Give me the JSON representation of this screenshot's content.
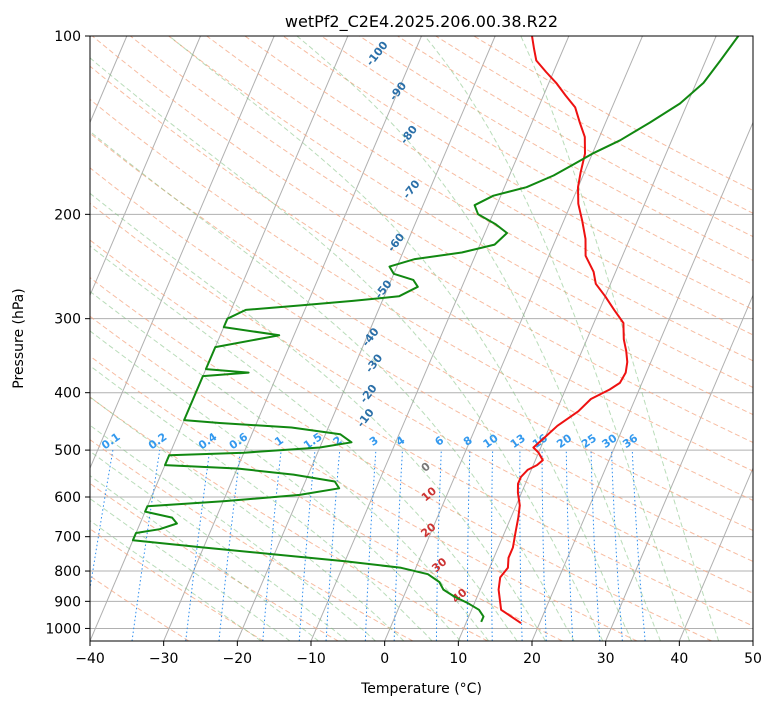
{
  "chart_data": {
    "type": "line",
    "title": "wetPf2_C2E4.2025.206.00.38.R22",
    "xlabel": "Temperature (°C)",
    "ylabel": "Pressure (hPa)",
    "xlim": [
      -40,
      50
    ],
    "ylim": [
      1050,
      100
    ],
    "y_scale": "log",
    "grid": true,
    "x_ticks": [
      -40,
      -30,
      -20,
      -10,
      0,
      10,
      20,
      30,
      40,
      50
    ],
    "y_ticks": [
      100,
      200,
      300,
      400,
      500,
      600,
      700,
      800,
      900,
      1000
    ],
    "series": [
      {
        "color": "#ee1111",
        "points": [
          [
            17.5,
            980
          ],
          [
            14,
            930
          ],
          [
            12.5,
            860
          ],
          [
            12,
            820
          ],
          [
            12.5,
            790
          ],
          [
            12,
            760
          ],
          [
            12,
            730
          ],
          [
            11.5,
            690
          ],
          [
            11,
            650
          ],
          [
            10.5,
            620
          ],
          [
            9.5,
            590
          ],
          [
            9,
            570
          ],
          [
            9,
            555
          ],
          [
            9.5,
            540
          ],
          [
            10.5,
            530
          ],
          [
            11,
            520
          ],
          [
            10,
            505
          ],
          [
            9,
            495
          ],
          [
            10,
            475
          ],
          [
            11,
            455
          ],
          [
            13,
            430
          ],
          [
            14,
            410
          ],
          [
            16,
            395
          ],
          [
            17,
            385
          ],
          [
            17.2,
            370
          ],
          [
            16.8,
            355
          ],
          [
            16,
            340
          ],
          [
            15,
            325
          ],
          [
            14,
            305
          ],
          [
            12,
            290
          ],
          [
            10,
            275
          ],
          [
            8,
            262
          ],
          [
            7,
            250
          ],
          [
            5,
            235
          ],
          [
            4,
            220
          ],
          [
            2.5,
            205
          ],
          [
            1,
            192
          ],
          [
            0,
            180
          ],
          [
            -0.5,
            170
          ],
          [
            -1,
            158
          ],
          [
            -2,
            148
          ],
          [
            -3.5,
            140
          ],
          [
            -5,
            132
          ],
          [
            -7,
            126
          ],
          [
            -9,
            120
          ],
          [
            -11,
            115
          ],
          [
            -13,
            110
          ],
          [
            -14,
            105
          ],
          [
            -15,
            100
          ]
        ]
      },
      {
        "color": "#118811",
        "points": [
          [
            12,
            975
          ],
          [
            12,
            955
          ],
          [
            11,
            930
          ],
          [
            9,
            905
          ],
          [
            7,
            885
          ],
          [
            5,
            860
          ],
          [
            4,
            835
          ],
          [
            2,
            810
          ],
          [
            -2,
            790
          ],
          [
            -10,
            770
          ],
          [
            -20,
            750
          ],
          [
            -30,
            730
          ],
          [
            -40,
            710
          ],
          [
            -40,
            690
          ],
          [
            -37,
            680
          ],
          [
            -35,
            665
          ],
          [
            -36,
            650
          ],
          [
            -40,
            635
          ],
          [
            -40,
            622
          ],
          [
            -30,
            610
          ],
          [
            -20,
            595
          ],
          [
            -15,
            580
          ],
          [
            -16,
            565
          ],
          [
            -22,
            550
          ],
          [
            -30,
            537
          ],
          [
            -40,
            530
          ],
          [
            -40,
            510
          ],
          [
            -30,
            505
          ],
          [
            -20,
            495
          ],
          [
            -16,
            485
          ],
          [
            -18,
            470
          ],
          [
            -25,
            458
          ],
          [
            -35,
            450
          ],
          [
            -40,
            445
          ],
          [
            -40,
            375
          ],
          [
            -34,
            370
          ],
          [
            -40,
            365
          ],
          [
            -40,
            335
          ],
          [
            -32,
            320
          ],
          [
            -40,
            310
          ],
          [
            -40,
            300
          ],
          [
            -38,
            290
          ],
          [
            -31,
            285
          ],
          [
            -24,
            280
          ],
          [
            -18,
            275
          ],
          [
            -16,
            265
          ],
          [
            -17,
            258
          ],
          [
            -20,
            252
          ],
          [
            -21,
            245
          ],
          [
            -18,
            238
          ],
          [
            -12,
            232
          ],
          [
            -8,
            225
          ],
          [
            -7,
            215
          ],
          [
            -9,
            208
          ],
          [
            -12,
            200
          ],
          [
            -13,
            193
          ],
          [
            -11,
            186
          ],
          [
            -7,
            180
          ],
          [
            -4,
            172
          ],
          [
            -2,
            165
          ],
          [
            0,
            158
          ],
          [
            3,
            150
          ],
          [
            6,
            140
          ],
          [
            9,
            130
          ],
          [
            11,
            120
          ],
          [
            12,
            110
          ],
          [
            13,
            100
          ]
        ]
      }
    ],
    "dry_adiabat_labels": [
      "-100",
      "-90",
      "-80",
      "-70",
      "-60",
      "-50",
      "-40",
      "-30",
      "-20",
      "-10"
    ],
    "moist_adiabat_labels": [
      "0",
      "10",
      "20",
      "30",
      "40"
    ],
    "mixing_ratio_labels": [
      "0.1",
      "0.2",
      "0.4",
      "0.6",
      "1",
      "1.5",
      "2",
      "3",
      "4",
      "6",
      "8",
      "10",
      "13",
      "16",
      "20",
      "25",
      "30",
      "36"
    ]
  }
}
